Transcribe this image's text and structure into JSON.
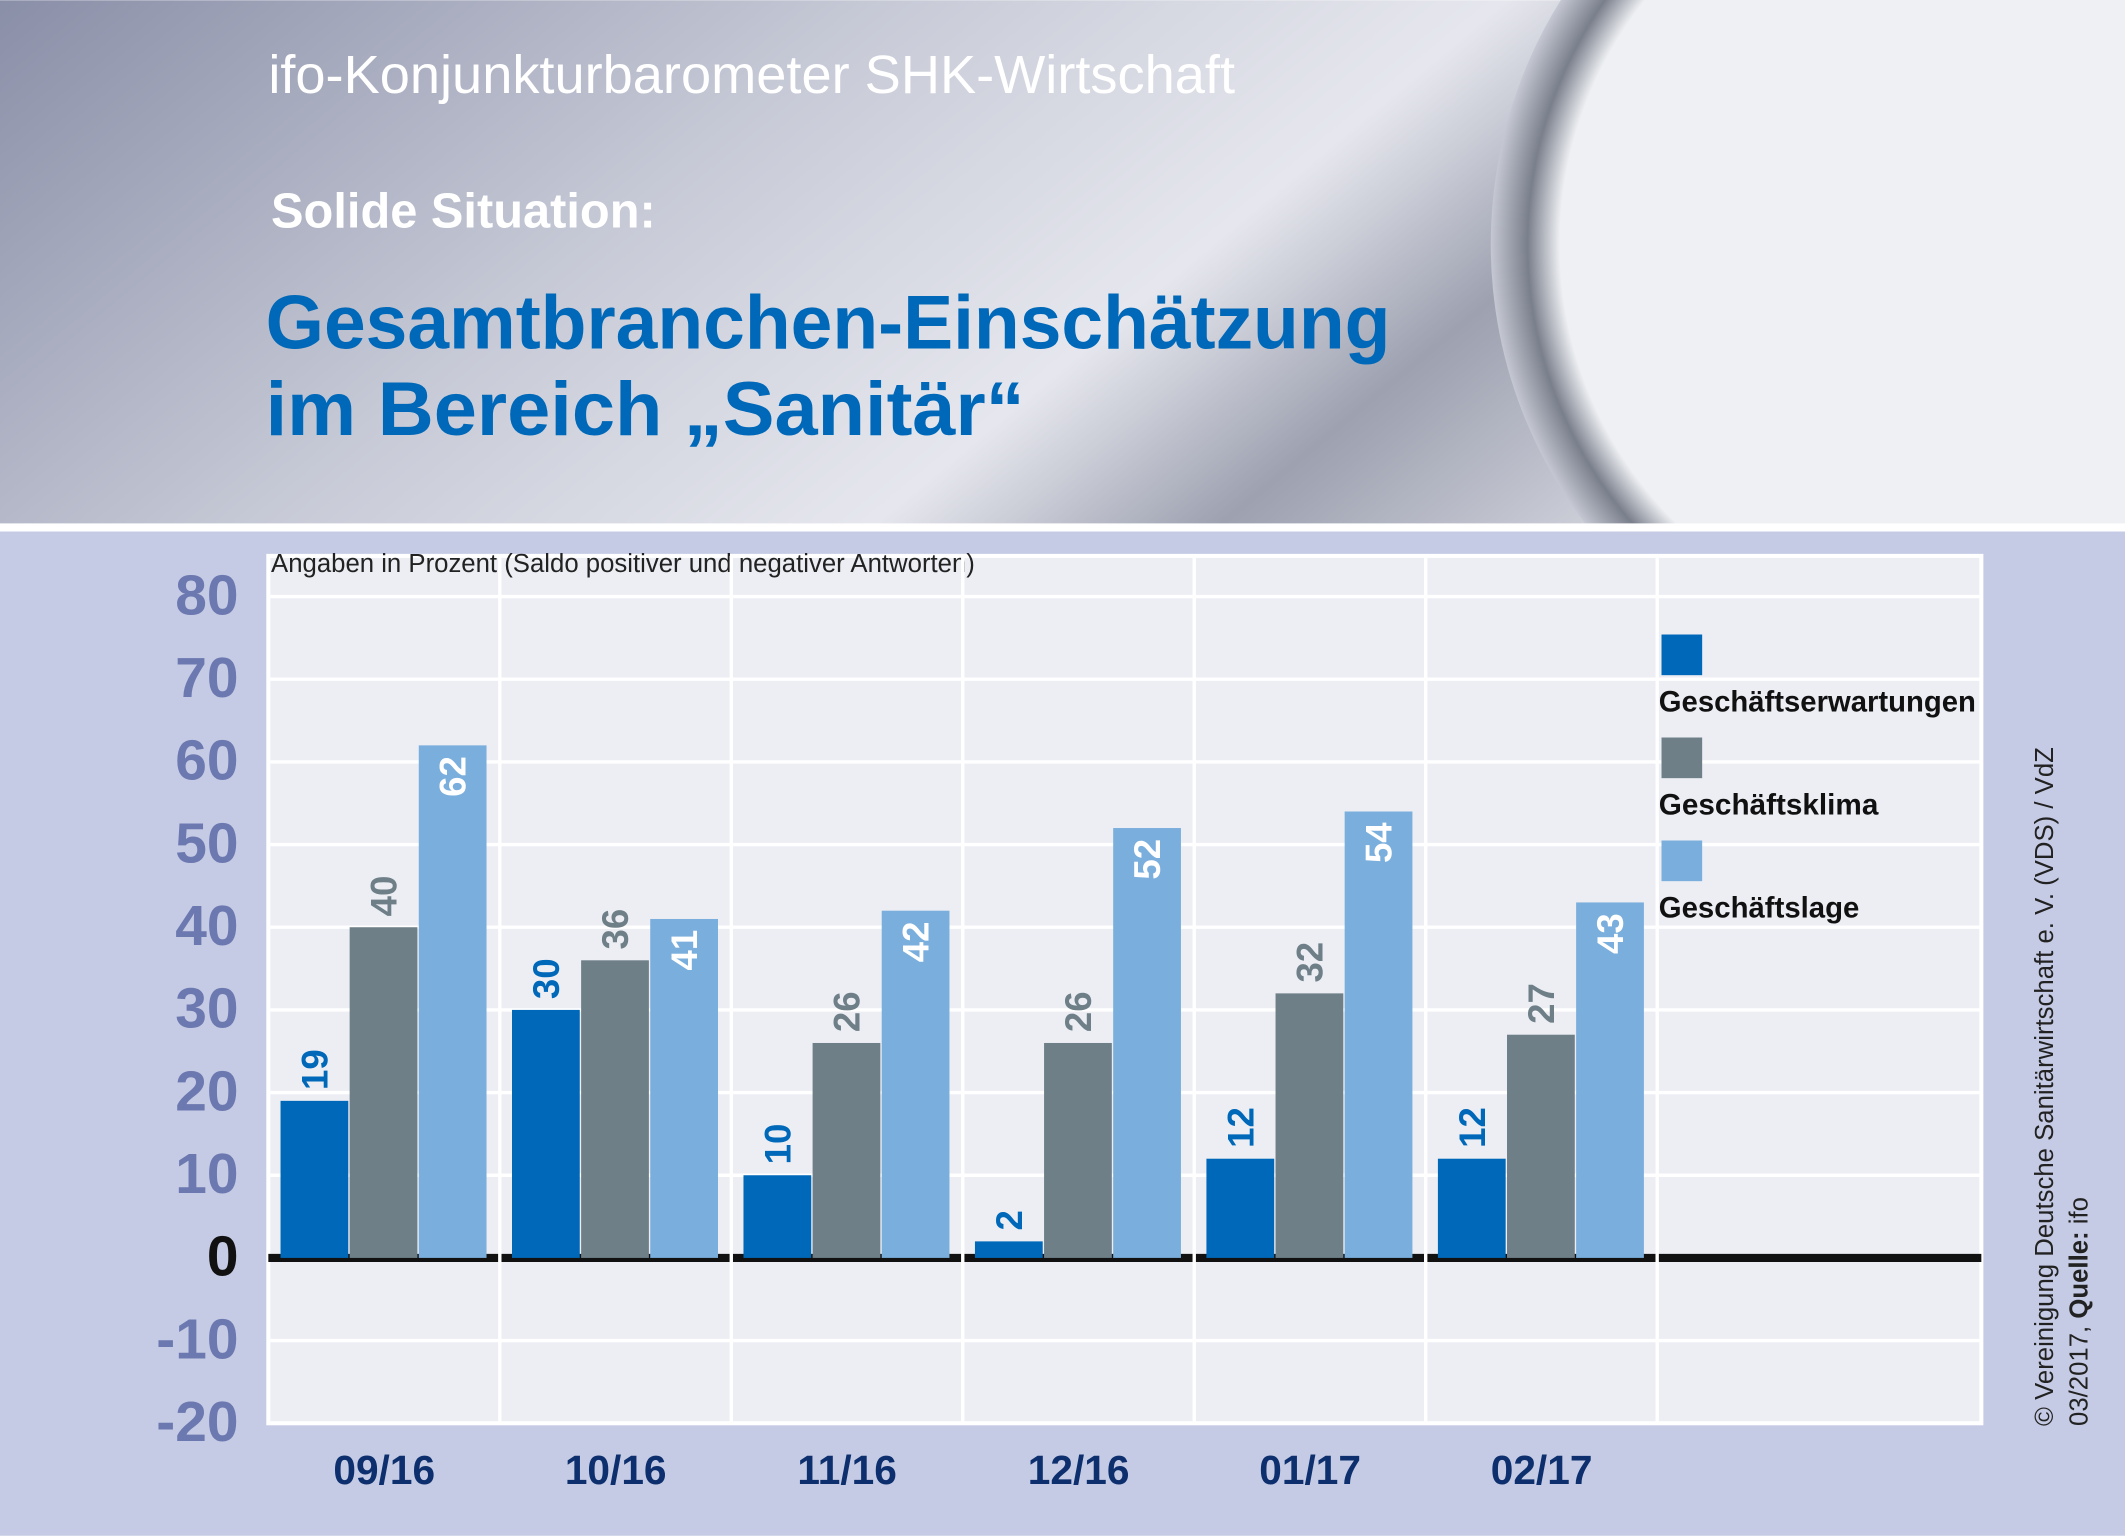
{
  "header": {
    "kicker": "ifo-Konjunkturbarometer SHK-Wirtschaft",
    "subtitle": "Solide Situation:",
    "title_lines": [
      "Gesamtbranchen-Einschätzung",
      "im Bereich „Sanitär“"
    ]
  },
  "chart_data": {
    "type": "bar",
    "axis_note": "Angaben in Prozent (Saldo positiver und negativer Antworten)",
    "categories": [
      "09/16",
      "10/16",
      "11/16",
      "12/16",
      "01/17",
      "02/17"
    ],
    "series": [
      {
        "name": "Geschäftserwartungen",
        "color": "#0068b8",
        "values": [
          19,
          30,
          10,
          2,
          12,
          12
        ]
      },
      {
        "name": "Geschäftsklima",
        "color": "#6e7f88",
        "values": [
          40,
          36,
          26,
          26,
          32,
          27
        ]
      },
      {
        "name": "Geschäftslage",
        "color": "#7aaedc",
        "values": [
          62,
          41,
          42,
          52,
          54,
          43
        ]
      }
    ],
    "ylim": [
      -20,
      80
    ],
    "yticks": [
      -20,
      -10,
      0,
      10,
      20,
      30,
      40,
      50,
      60,
      70,
      80
    ],
    "grid": true,
    "source": {
      "line1": "© Vereinigung Deutsche Sanitärwirtschaft e. V. (VDS) / VdZ",
      "date": "03/2017,",
      "label": "Quelle:",
      "value": "ifo"
    }
  }
}
